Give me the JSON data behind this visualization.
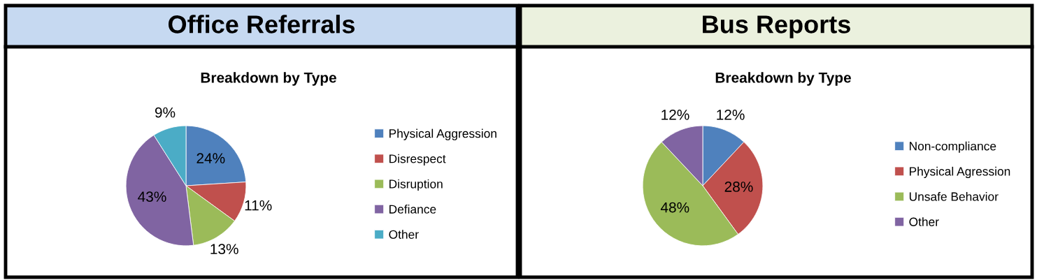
{
  "chart_data": [
    {
      "type": "pie",
      "title": "Office Referrals",
      "subtitle": "Breakdown by Type",
      "categories": [
        "Physical Aggression",
        "Disrespect",
        "Disruption",
        "Defiance",
        "Other"
      ],
      "values": [
        24,
        11,
        13,
        43,
        9
      ],
      "value_labels": [
        "24%",
        "11%",
        "13%",
        "43%",
        "9%"
      ],
      "colors": [
        "#4f81bd",
        "#c0504d",
        "#9bbb59",
        "#8064a2",
        "#4bacc6"
      ],
      "legend": "right"
    },
    {
      "type": "pie",
      "title": "Bus Reports",
      "subtitle": "Breakdown by Type",
      "categories": [
        "Non-compliance",
        "Physical Agression",
        "Unsafe Behavior",
        "Other"
      ],
      "values": [
        12,
        28,
        48,
        12
      ],
      "value_labels": [
        "12%",
        "28%",
        "48%",
        "12%"
      ],
      "colors": [
        "#4f81bd",
        "#c0504d",
        "#9bbb59",
        "#8064a2"
      ],
      "legend": "right"
    }
  ]
}
